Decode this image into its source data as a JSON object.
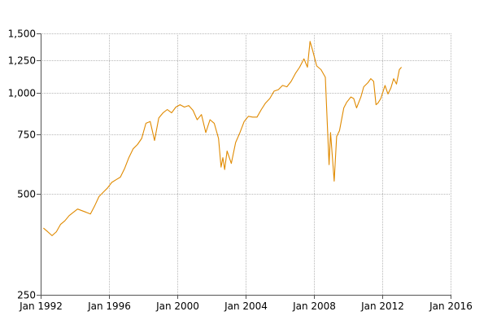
{
  "chart_data": {
    "type": "line",
    "title": "",
    "xlabel": "",
    "ylabel": "",
    "y_scale": "log",
    "ylim": [
      250,
      1500
    ],
    "xlim": [
      "1992-01-01",
      "2016-01-01"
    ],
    "x_ticks": [
      {
        "date": "1992-01-01",
        "label": "Jan 1992"
      },
      {
        "date": "1996-01-01",
        "label": "Jan 1996"
      },
      {
        "date": "2000-01-01",
        "label": "Jan 2000"
      },
      {
        "date": "2004-01-01",
        "label": "Jan 2004"
      },
      {
        "date": "2008-01-01",
        "label": "Jan 2008"
      },
      {
        "date": "2012-01-01",
        "label": "Jan 2012"
      },
      {
        "date": "2016-01-01",
        "label": "Jan 2016"
      }
    ],
    "y_ticks": [
      {
        "value": 250,
        "label": "250"
      },
      {
        "value": 500,
        "label": "500"
      },
      {
        "value": 750,
        "label": "750"
      },
      {
        "value": 1000,
        "label": "1,000"
      },
      {
        "value": 1250,
        "label": "1,250"
      },
      {
        "value": 1500,
        "label": "1,500"
      }
    ],
    "grid": true,
    "legend": "none",
    "series": [
      {
        "color": "#e08a00",
        "points": [
          [
            "1992-03-01",
            395
          ],
          [
            "1992-06-01",
            385
          ],
          [
            "1992-09-01",
            375
          ],
          [
            "1992-12-01",
            385
          ],
          [
            "1993-03-01",
            405
          ],
          [
            "1993-06-01",
            415
          ],
          [
            "1993-09-01",
            430
          ],
          [
            "1993-12-01",
            440
          ],
          [
            "1994-03-01",
            450
          ],
          [
            "1994-06-01",
            445
          ],
          [
            "1994-09-01",
            440
          ],
          [
            "1994-12-01",
            435
          ],
          [
            "1995-03-01",
            460
          ],
          [
            "1995-06-01",
            490
          ],
          [
            "1995-09-01",
            505
          ],
          [
            "1995-12-01",
            520
          ],
          [
            "1996-03-01",
            540
          ],
          [
            "1996-06-01",
            550
          ],
          [
            "1996-09-01",
            560
          ],
          [
            "1996-12-01",
            595
          ],
          [
            "1997-03-01",
            640
          ],
          [
            "1997-06-01",
            680
          ],
          [
            "1997-09-01",
            700
          ],
          [
            "1997-12-01",
            730
          ],
          [
            "1998-03-01",
            810
          ],
          [
            "1998-06-01",
            820
          ],
          [
            "1998-09-01",
            720
          ],
          [
            "1998-12-01",
            840
          ],
          [
            "1999-03-01",
            870
          ],
          [
            "1999-06-01",
            890
          ],
          [
            "1999-09-01",
            870
          ],
          [
            "1999-12-01",
            905
          ],
          [
            "2000-03-01",
            920
          ],
          [
            "2000-06-01",
            905
          ],
          [
            "2000-09-01",
            915
          ],
          [
            "2000-12-01",
            885
          ],
          [
            "2001-03-01",
            830
          ],
          [
            "2001-06-01",
            860
          ],
          [
            "2001-09-01",
            760
          ],
          [
            "2001-12-01",
            830
          ],
          [
            "2002-03-01",
            810
          ],
          [
            "2002-06-01",
            730
          ],
          [
            "2002-07-24",
            600
          ],
          [
            "2002-09-01",
            640
          ],
          [
            "2002-10-09",
            590
          ],
          [
            "2002-12-01",
            670
          ],
          [
            "2003-03-01",
            615
          ],
          [
            "2003-06-01",
            710
          ],
          [
            "2003-09-01",
            760
          ],
          [
            "2003-12-01",
            820
          ],
          [
            "2004-03-01",
            850
          ],
          [
            "2004-06-01",
            845
          ],
          [
            "2004-09-01",
            845
          ],
          [
            "2004-12-01",
            890
          ],
          [
            "2005-03-01",
            930
          ],
          [
            "2005-06-01",
            960
          ],
          [
            "2005-09-01",
            1010
          ],
          [
            "2005-12-01",
            1020
          ],
          [
            "2006-03-01",
            1050
          ],
          [
            "2006-06-01",
            1040
          ],
          [
            "2006-09-01",
            1080
          ],
          [
            "2006-12-01",
            1140
          ],
          [
            "2007-03-01",
            1190
          ],
          [
            "2007-06-01",
            1260
          ],
          [
            "2007-08-15",
            1190
          ],
          [
            "2007-10-09",
            1420
          ],
          [
            "2007-12-01",
            1340
          ],
          [
            "2008-03-01",
            1200
          ],
          [
            "2008-06-01",
            1170
          ],
          [
            "2008-09-01",
            1110
          ],
          [
            "2008-10-10",
            820
          ],
          [
            "2008-11-20",
            610
          ],
          [
            "2008-12-20",
            760
          ],
          [
            "2009-03-09",
            545
          ],
          [
            "2009-05-01",
            740
          ],
          [
            "2009-07-01",
            770
          ],
          [
            "2009-10-01",
            900
          ],
          [
            "2009-12-01",
            935
          ],
          [
            "2010-03-01",
            970
          ],
          [
            "2010-05-01",
            960
          ],
          [
            "2010-07-01",
            900
          ],
          [
            "2010-10-01",
            970
          ],
          [
            "2010-12-01",
            1040
          ],
          [
            "2011-03-01",
            1070
          ],
          [
            "2011-05-01",
            1100
          ],
          [
            "2011-07-01",
            1080
          ],
          [
            "2011-08-20",
            920
          ],
          [
            "2011-10-01",
            930
          ],
          [
            "2011-12-01",
            960
          ],
          [
            "2012-03-01",
            1050
          ],
          [
            "2012-05-01",
            990
          ],
          [
            "2012-07-01",
            1030
          ],
          [
            "2012-09-01",
            1100
          ],
          [
            "2012-11-01",
            1060
          ],
          [
            "2013-01-01",
            1170
          ],
          [
            "2013-02-15",
            1190
          ]
        ]
      }
    ]
  }
}
